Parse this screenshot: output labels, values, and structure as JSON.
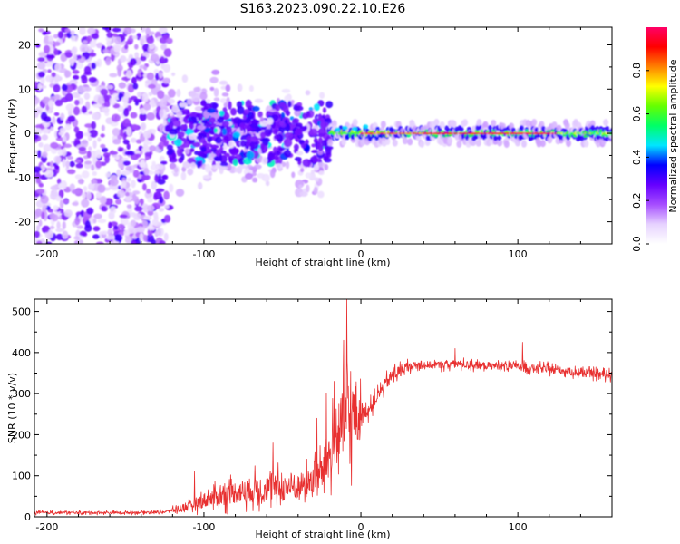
{
  "title": "S163.2023.090.22.10.E26",
  "chart_data": [
    {
      "type": "heatmap",
      "xlabel": "Height of straight line (km)",
      "ylabel": "Frequency (Hz)",
      "xlim": [
        -208,
        160
      ],
      "ylim": [
        -25,
        24
      ],
      "xticks": [
        -200,
        -100,
        0,
        100
      ],
      "yticks": [
        -20,
        -10,
        0,
        10,
        20
      ],
      "colorbar": {
        "label": "Normalized spectral amplitude",
        "range": [
          0,
          1
        ],
        "ticks": [
          "0.0",
          "0.2",
          "0.4",
          "0.6",
          "0.8"
        ],
        "colors": [
          "#ffffff",
          "#e6d2ff",
          "#a64dff",
          "#6600ff",
          "#0000ff",
          "#00e6ff",
          "#00ff66",
          "#66ff00",
          "#ffff00",
          "#ff8000",
          "#ff0000",
          "#ff0066"
        ]
      },
      "regions": [
        {
          "name": "noise",
          "x": [
            -208,
            -122
          ],
          "freq": [
            -25,
            24
          ],
          "amplitude": 0.15
        },
        {
          "name": "scatter",
          "x": [
            -122,
            -20
          ],
          "freq": [
            -15,
            9
          ],
          "amplitude": 0.3
        },
        {
          "name": "signal",
          "x": [
            -20,
            160
          ],
          "freq": [
            -1.5,
            1.5
          ],
          "amplitude": 0.9
        }
      ]
    },
    {
      "type": "line",
      "xlabel": "Height of straight line (km)",
      "ylabel": "SNR (10 * v/v)",
      "xlim": [
        -208,
        160
      ],
      "ylim": [
        0,
        530
      ],
      "xticks": [
        -200,
        -100,
        0,
        100
      ],
      "yticks": [
        0,
        100,
        200,
        300,
        400,
        500
      ],
      "color": "#e83030",
      "series": [
        {
          "name": "SNR",
          "x": [
            -208,
            -180,
            -150,
            -125,
            -110,
            -100,
            -90,
            -80,
            -70,
            -60,
            -50,
            -40,
            -30,
            -25,
            -20,
            -15,
            -10,
            -5,
            0,
            5,
            10,
            15,
            20,
            30,
            40,
            50,
            60,
            70,
            80,
            90,
            100,
            110,
            120,
            130,
            140,
            150,
            160
          ],
          "y": [
            10,
            10,
            10,
            12,
            25,
            40,
            50,
            60,
            65,
            70,
            70,
            75,
            90,
            110,
            150,
            200,
            230,
            240,
            250,
            260,
            290,
            320,
            345,
            365,
            370,
            370,
            372,
            370,
            368,
            368,
            366,
            362,
            360,
            355,
            350,
            348,
            345
          ],
          "spikes": [
            {
              "x": -106,
              "y": 110
            },
            {
              "x": -56,
              "y": 180
            },
            {
              "x": -28,
              "y": 240
            },
            {
              "x": -22,
              "y": 300
            },
            {
              "x": -17,
              "y": 330
            },
            {
              "x": -11,
              "y": 430
            },
            {
              "x": -9,
              "y": 530
            },
            {
              "x": 60,
              "y": 410
            },
            {
              "x": 103,
              "y": 425
            }
          ]
        }
      ]
    }
  ]
}
